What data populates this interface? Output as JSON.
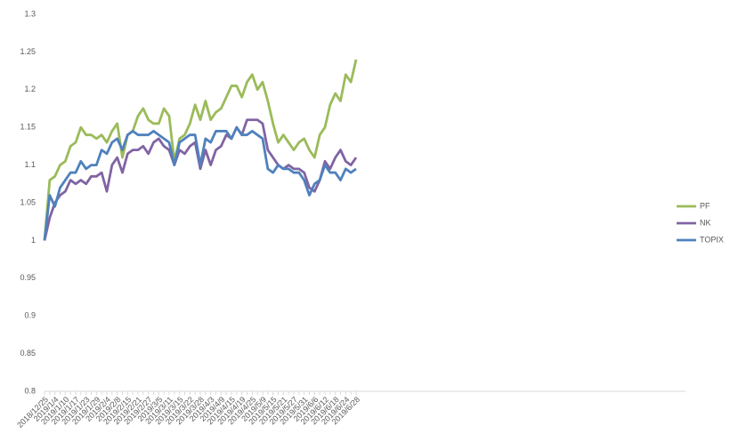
{
  "chart_data": {
    "type": "line",
    "categories": [
      "2018/12/25",
      null,
      "2019/1/4",
      null,
      "2019/1/10",
      null,
      "2019/1/17",
      null,
      "2019/1/23",
      null,
      "2019/1/29",
      null,
      "2019/2/4",
      null,
      "2019/2/8",
      null,
      "2019/2/15",
      null,
      "2019/2/21",
      null,
      "2019/2/27",
      null,
      "2019/3/5",
      null,
      "2019/3/11",
      null,
      "2019/3/15",
      null,
      "2019/3/22",
      null,
      "2019/3/28",
      null,
      "2019/4/3",
      null,
      "2019/4/9",
      null,
      "2019/4/15",
      null,
      "2019/4/19",
      null,
      "2019/4/25",
      null,
      "2019/5/9",
      null,
      "2019/5/15",
      null,
      "2019/5/21",
      null,
      "2019/5/27",
      null,
      "2019/5/31",
      null,
      "2019/6/6",
      null,
      "2019/6/12",
      null,
      "2019/6/18",
      null,
      "2019/6/24",
      null,
      "2019/6/28"
    ],
    "series": [
      {
        "name": "PF",
        "color": "#9bbb59",
        "values": [
          1.0,
          1.08,
          1.085,
          1.1,
          1.105,
          1.125,
          1.13,
          1.15,
          1.14,
          1.14,
          1.135,
          1.14,
          1.13,
          1.145,
          1.155,
          1.11,
          1.14,
          1.145,
          1.165,
          1.175,
          1.16,
          1.155,
          1.155,
          1.175,
          1.165,
          1.105,
          1.135,
          1.14,
          1.155,
          1.18,
          1.16,
          1.185,
          1.16,
          1.17,
          1.175,
          1.19,
          1.205,
          1.205,
          1.19,
          1.21,
          1.22,
          1.2,
          1.21,
          1.185,
          1.155,
          1.13,
          1.14,
          1.13,
          1.12,
          1.13,
          1.135,
          1.12,
          1.11,
          1.14,
          1.15,
          1.18,
          1.195,
          1.185,
          1.22,
          1.21,
          1.24
        ]
      },
      {
        "name": "NK",
        "color": "#8064a2",
        "values": [
          1.0,
          1.03,
          1.05,
          1.06,
          1.065,
          1.08,
          1.075,
          1.08,
          1.075,
          1.085,
          1.085,
          1.09,
          1.065,
          1.1,
          1.11,
          1.09,
          1.115,
          1.12,
          1.12,
          1.125,
          1.115,
          1.13,
          1.135,
          1.125,
          1.12,
          1.1,
          1.12,
          1.115,
          1.125,
          1.13,
          1.095,
          1.12,
          1.1,
          1.12,
          1.125,
          1.14,
          1.135,
          1.15,
          1.14,
          1.16,
          1.16,
          1.16,
          1.155,
          1.12,
          1.11,
          1.1,
          1.095,
          1.1,
          1.095,
          1.095,
          1.09,
          1.07,
          1.065,
          1.08,
          1.105,
          1.095,
          1.11,
          1.12,
          1.105,
          1.1,
          1.11
        ]
      },
      {
        "name": "TOPIX",
        "color": "#4f81bd",
        "values": [
          1.0,
          1.06,
          1.045,
          1.07,
          1.08,
          1.09,
          1.09,
          1.105,
          1.095,
          1.1,
          1.1,
          1.12,
          1.115,
          1.13,
          1.135,
          1.12,
          1.14,
          1.145,
          1.14,
          1.14,
          1.14,
          1.145,
          1.14,
          1.135,
          1.13,
          1.1,
          1.13,
          1.135,
          1.14,
          1.14,
          1.1,
          1.135,
          1.13,
          1.145,
          1.145,
          1.145,
          1.135,
          1.15,
          1.14,
          1.14,
          1.145,
          1.14,
          1.135,
          1.095,
          1.09,
          1.1,
          1.095,
          1.095,
          1.09,
          1.09,
          1.08,
          1.06,
          1.075,
          1.08,
          1.1,
          1.09,
          1.09,
          1.08,
          1.095,
          1.09,
          1.095
        ]
      }
    ],
    "ylim": [
      0.8,
      1.3
    ],
    "yticks": [
      0.8,
      0.85,
      0.9,
      0.95,
      1,
      1.05,
      1.1,
      1.15,
      1.2,
      1.25,
      1.3
    ],
    "grid": false,
    "legend": "right"
  }
}
